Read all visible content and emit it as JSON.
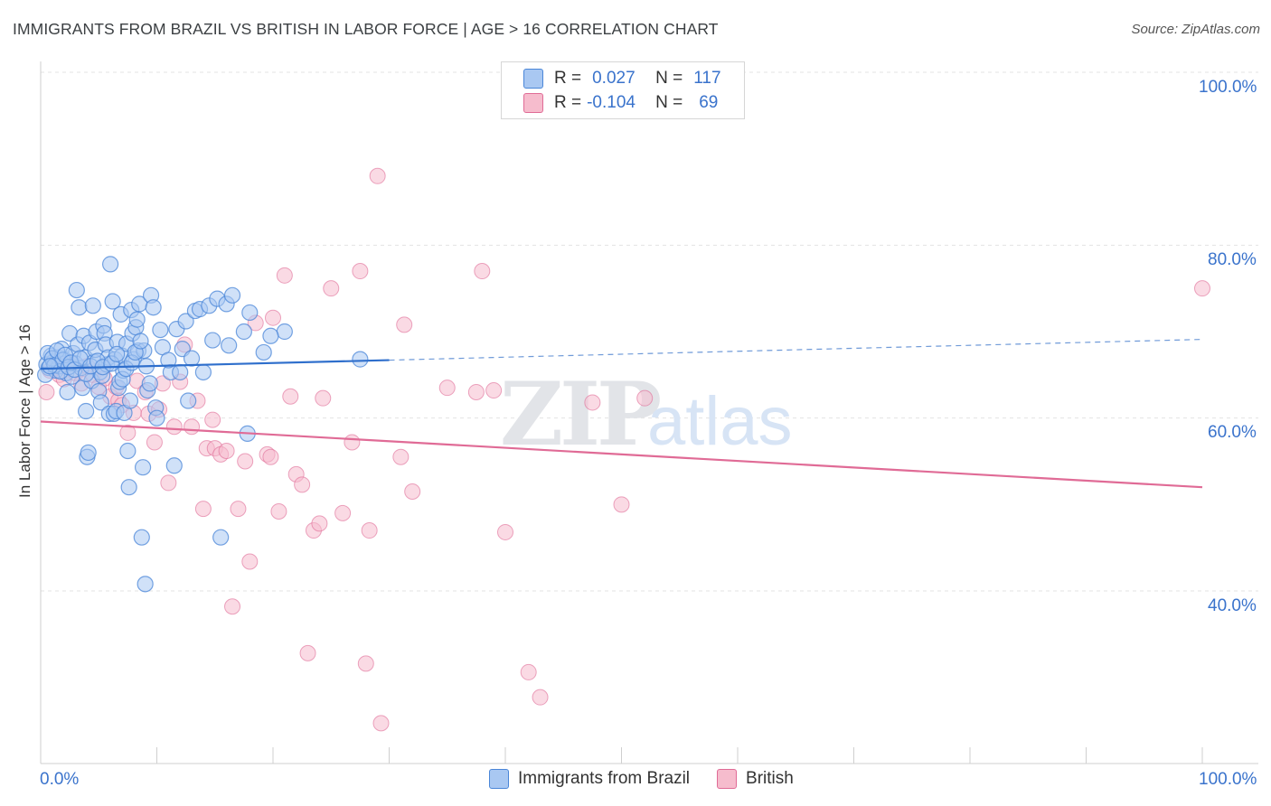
{
  "title": "IMMIGRANTS FROM BRAZIL VS BRITISH IN LABOR FORCE | AGE > 16 CORRELATION CHART",
  "source": "Source: ZipAtlas.com",
  "watermark": {
    "zip": "ZIP",
    "atlas": "atlas"
  },
  "legend": {
    "r_label": "R =",
    "n_label": "N =",
    "rows": [
      {
        "r": "0.027",
        "n": "117",
        "color": "#a9c8f2"
      },
      {
        "r": "-0.104",
        "n": "69",
        "color": "#f6bccd"
      }
    ]
  },
  "chart_data": {
    "type": "scatter",
    "title": "IMMIGRANTS FROM BRAZIL VS BRITISH IN LABOR FORCE | AGE > 16 CORRELATION CHART",
    "xlabel": "",
    "ylabel": "In Labor Force | Age > 16",
    "xlim": [
      0,
      100
    ],
    "ylim": [
      20,
      102
    ],
    "x_tick_labels": [
      "0.0%",
      "100.0%"
    ],
    "y_ticks": [
      40,
      60,
      80,
      100
    ],
    "y_tick_labels": [
      "40.0%",
      "60.0%",
      "80.0%",
      "100.0%"
    ],
    "grid": true,
    "legend_position": "top-center",
    "series": [
      {
        "name": "Immigrants from Brazil",
        "color": "#4a86d8",
        "fill": "#a9c8f2",
        "trend": {
          "x0": 0,
          "y0": 65.7,
          "x1": 30,
          "y1": 66.7,
          "dashed_to_x": 100,
          "dashed_y1": 69.1
        },
        "points": [
          [
            0.5,
            66.2
          ],
          [
            0.7,
            65.8
          ],
          [
            0.9,
            67.2
          ],
          [
            1.1,
            66.5
          ],
          [
            1.3,
            65.5
          ],
          [
            1.5,
            67.0
          ],
          [
            1.6,
            66.0
          ],
          [
            1.8,
            68.0
          ],
          [
            2.0,
            66.8
          ],
          [
            2.2,
            65.2
          ],
          [
            2.3,
            63.0
          ],
          [
            2.5,
            69.8
          ],
          [
            2.7,
            64.8
          ],
          [
            2.8,
            67.5
          ],
          [
            3.0,
            66.3
          ],
          [
            3.1,
            74.8
          ],
          [
            3.2,
            68.5
          ],
          [
            3.3,
            72.8
          ],
          [
            3.5,
            65.8
          ],
          [
            3.6,
            63.5
          ],
          [
            3.7,
            69.5
          ],
          [
            3.8,
            67.0
          ],
          [
            3.9,
            60.8
          ],
          [
            4.0,
            55.5
          ],
          [
            4.1,
            56.0
          ],
          [
            4.2,
            68.7
          ],
          [
            4.4,
            64.3
          ],
          [
            4.5,
            73.0
          ],
          [
            4.6,
            66.5
          ],
          [
            4.7,
            67.9
          ],
          [
            4.8,
            70.0
          ],
          [
            5.0,
            63.1
          ],
          [
            5.1,
            65.3
          ],
          [
            5.2,
            61.8
          ],
          [
            5.3,
            64.9
          ],
          [
            5.4,
            70.7
          ],
          [
            5.5,
            69.8
          ],
          [
            5.6,
            68.5
          ],
          [
            5.7,
            66.2
          ],
          [
            5.8,
            67.0
          ],
          [
            5.9,
            60.5
          ],
          [
            6.0,
            77.8
          ],
          [
            6.2,
            73.5
          ],
          [
            6.3,
            60.5
          ],
          [
            6.4,
            66.8
          ],
          [
            6.5,
            60.8
          ],
          [
            6.6,
            68.8
          ],
          [
            6.7,
            63.5
          ],
          [
            6.8,
            64.2
          ],
          [
            6.9,
            72.0
          ],
          [
            7.0,
            67.2
          ],
          [
            7.1,
            65.5
          ],
          [
            7.2,
            60.6
          ],
          [
            7.4,
            68.6
          ],
          [
            7.5,
            56.2
          ],
          [
            7.6,
            52.0
          ],
          [
            7.7,
            62.0
          ],
          [
            7.8,
            72.5
          ],
          [
            7.9,
            69.8
          ],
          [
            8.0,
            66.8
          ],
          [
            8.2,
            70.5
          ],
          [
            8.3,
            71.4
          ],
          [
            8.4,
            67.8
          ],
          [
            8.5,
            73.2
          ],
          [
            8.7,
            46.2
          ],
          [
            8.8,
            54.3
          ],
          [
            8.9,
            67.8
          ],
          [
            9.0,
            40.8
          ],
          [
            9.2,
            63.2
          ],
          [
            9.5,
            74.2
          ],
          [
            9.7,
            72.8
          ],
          [
            9.9,
            61.2
          ],
          [
            10.0,
            60.0
          ],
          [
            10.3,
            70.2
          ],
          [
            11.2,
            65.3
          ],
          [
            11.5,
            54.5
          ],
          [
            11.7,
            70.3
          ],
          [
            12.0,
            65.3
          ],
          [
            12.5,
            71.2
          ],
          [
            12.7,
            62.0
          ],
          [
            13.3,
            72.4
          ],
          [
            13.7,
            72.6
          ],
          [
            14.0,
            65.3
          ],
          [
            14.5,
            73.0
          ],
          [
            15.2,
            73.8
          ],
          [
            15.5,
            46.2
          ],
          [
            16.0,
            73.2
          ],
          [
            16.5,
            74.2
          ],
          [
            17.5,
            70.0
          ],
          [
            17.8,
            58.2
          ],
          [
            18.0,
            72.2
          ],
          [
            19.2,
            67.6
          ],
          [
            21.0,
            70.0
          ],
          [
            27.5,
            66.8
          ],
          [
            0.4,
            65.0
          ],
          [
            0.6,
            67.5
          ],
          [
            1.0,
            66.9
          ],
          [
            1.2,
            66.1
          ],
          [
            1.4,
            67.8
          ],
          [
            1.7,
            65.4
          ],
          [
            1.9,
            66.7
          ],
          [
            2.1,
            67.3
          ],
          [
            2.4,
            65.9
          ],
          [
            2.6,
            66.4
          ],
          [
            2.9,
            65.6
          ],
          [
            3.4,
            66.9
          ],
          [
            3.9,
            65.1
          ],
          [
            4.3,
            66.0
          ],
          [
            4.9,
            66.6
          ],
          [
            5.35,
            65.9
          ],
          [
            6.1,
            66.3
          ],
          [
            6.55,
            67.4
          ],
          [
            7.05,
            64.5
          ],
          [
            7.35,
            65.7
          ],
          [
            7.85,
            66.4
          ],
          [
            8.15,
            67.6
          ],
          [
            8.6,
            68.9
          ],
          [
            9.1,
            66.0
          ],
          [
            9.4,
            64.0
          ],
          [
            10.5,
            68.2
          ],
          [
            11.0,
            66.7
          ],
          [
            12.2,
            68.0
          ],
          [
            13.0,
            66.9
          ],
          [
            14.8,
            69.0
          ],
          [
            16.2,
            68.4
          ],
          [
            19.8,
            69.5
          ],
          [
            0.8,
            66.0
          ]
        ]
      },
      {
        "name": "British",
        "color": "#e06b96",
        "fill": "#f6bccd",
        "trend": {
          "x0": 0,
          "y0": 59.6,
          "x1": 100,
          "y1": 52.0
        },
        "points": [
          [
            0.5,
            63.0
          ],
          [
            0.8,
            65.5
          ],
          [
            1.2,
            66.0
          ],
          [
            1.6,
            65.0
          ],
          [
            2.0,
            64.5
          ],
          [
            2.4,
            66.3
          ],
          [
            3.0,
            65.2
          ],
          [
            3.5,
            64.0
          ],
          [
            4.0,
            66.0
          ],
          [
            4.5,
            65.0
          ],
          [
            5.0,
            63.6
          ],
          [
            5.5,
            64.6
          ],
          [
            6.0,
            62.5
          ],
          [
            6.5,
            63.6
          ],
          [
            6.7,
            62.0
          ],
          [
            7.0,
            61.5
          ],
          [
            7.5,
            58.3
          ],
          [
            8.0,
            60.6
          ],
          [
            8.3,
            64.3
          ],
          [
            9.0,
            63.0
          ],
          [
            9.3,
            60.5
          ],
          [
            9.8,
            57.2
          ],
          [
            10.2,
            61.0
          ],
          [
            10.5,
            64.0
          ],
          [
            11.0,
            52.5
          ],
          [
            11.5,
            59.0
          ],
          [
            12.0,
            64.2
          ],
          [
            12.4,
            68.5
          ],
          [
            13.0,
            59.0
          ],
          [
            13.5,
            62.0
          ],
          [
            14.0,
            49.5
          ],
          [
            14.3,
            56.5
          ],
          [
            14.8,
            59.8
          ],
          [
            15.0,
            56.5
          ],
          [
            15.5,
            55.8
          ],
          [
            16.0,
            56.2
          ],
          [
            16.5,
            38.2
          ],
          [
            17.0,
            49.5
          ],
          [
            17.6,
            55.0
          ],
          [
            18.0,
            43.4
          ],
          [
            18.5,
            71.0
          ],
          [
            19.5,
            55.8
          ],
          [
            19.8,
            55.5
          ],
          [
            20.0,
            71.6
          ],
          [
            20.5,
            49.2
          ],
          [
            21.0,
            76.5
          ],
          [
            21.5,
            62.5
          ],
          [
            22.0,
            53.5
          ],
          [
            22.5,
            52.3
          ],
          [
            23.0,
            32.8
          ],
          [
            23.5,
            47.0
          ],
          [
            24.0,
            47.8
          ],
          [
            24.3,
            62.3
          ],
          [
            25.0,
            75.0
          ],
          [
            26.0,
            49.0
          ],
          [
            26.8,
            57.2
          ],
          [
            27.5,
            77.0
          ],
          [
            28.0,
            31.6
          ],
          [
            28.3,
            47.0
          ],
          [
            29.0,
            88.0
          ],
          [
            29.3,
            24.7
          ],
          [
            31.0,
            55.5
          ],
          [
            31.3,
            70.8
          ],
          [
            32.0,
            51.5
          ],
          [
            35.0,
            63.5
          ],
          [
            37.5,
            63.0
          ],
          [
            38.0,
            77.0
          ],
          [
            39.0,
            63.2
          ],
          [
            40.0,
            46.8
          ]
        ],
        "extra_points": [
          [
            42.0,
            30.6
          ],
          [
            43.0,
            27.7
          ],
          [
            47.5,
            61.8
          ],
          [
            50.0,
            50.0
          ],
          [
            52.0,
            62.3
          ],
          [
            100.0,
            75.0
          ]
        ]
      }
    ]
  },
  "bottom_legend": [
    {
      "label": "Immigrants from Brazil",
      "color": "#a9c8f2",
      "stroke": "#4a86d8"
    },
    {
      "label": "British",
      "color": "#f6bccd",
      "stroke": "#e06b96"
    }
  ]
}
